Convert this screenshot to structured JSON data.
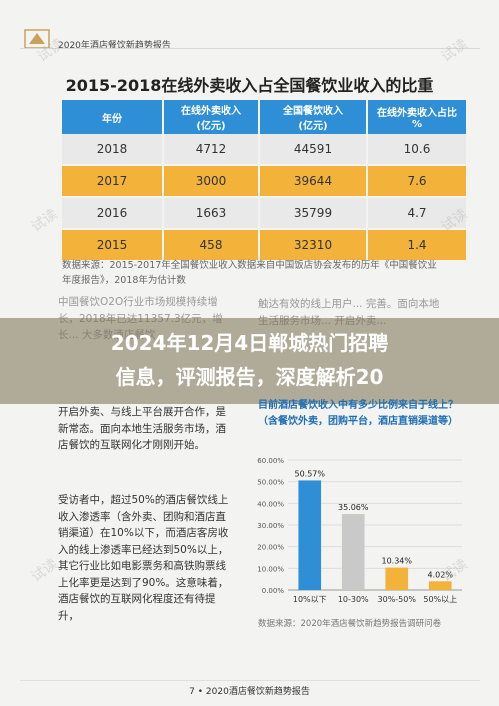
{
  "header": {
    "title": "2020年酒店餐饮新趋势报告"
  },
  "section": {
    "title": "2015-2018在线外卖收入占全国餐饮业收入的比重"
  },
  "table": {
    "headers": [
      "年份",
      "在线外卖收入\n(亿元)",
      "全国餐饮收入\n(亿元)",
      "在线外卖收入占比\n%"
    ],
    "rows": [
      [
        "2018",
        "4712",
        "44591",
        "10.6"
      ],
      [
        "2017",
        "3000",
        "39644",
        "7.6"
      ],
      [
        "2016",
        "1663",
        "35799",
        "4.7"
      ],
      [
        "2015",
        "458",
        "32310",
        "1.4"
      ]
    ]
  },
  "source1": "数据来源：2015-2017年全国餐饮业收入数据来自中国饭店协会发布的历年《中国餐饮业年度报告》，2018年为估计数",
  "left_col": {
    "p1_frag": "中国餐饮O2O行业市场规模持续增长，2018年已达11357.3亿元，增长... 大多数酒店餐饮",
    "p1": "开启外卖、与线上平台展开合作，是新常态。面向本地生活服务市场，酒店餐饮的互联网化才刚刚开始。",
    "p2": "受访者中，超过50%的酒店餐饮线上收入渗透率（含外卖、团购和酒店直销渠道）在10%以下，而酒店客房收入的线上渗透率已经达到50%以上，其它行业比如电影票务和高铁购票线上化率更是达到了90%。这意味着，酒店餐饮的互联网化程度还有待提升，"
  },
  "right_col": {
    "frag": "触达有效的线上用户... 完善。面向本地生活服务市场... 开启外卖..."
  },
  "banner": {
    "line1": "2024年12月4日郸城热门招聘",
    "line2": "信息，评测报告，深度解析20"
  },
  "chart_title": "目前酒店餐饮收入中有多少比例来自于线上？（含餐饮外卖，团购平台，酒店直销渠道等）",
  "chart_data": {
    "type": "bar",
    "categories": [
      "10%以下",
      "10-30%",
      "30%-50%",
      "50%以上"
    ],
    "values": [
      50.57,
      35.06,
      10.34,
      4.02
    ],
    "value_labels": [
      "50.57%",
      "35.06%",
      "10.34%",
      "4.02%"
    ],
    "ylim": [
      0,
      60
    ],
    "yticks": [
      "0.00%",
      "10.00%",
      "20.00%",
      "30.00%",
      "40.00%",
      "50.00%",
      "60.00%"
    ],
    "colors": [
      "#2e8fd6",
      "#c9c9c9",
      "#f3b23a",
      "#f3b23a"
    ]
  },
  "source2": "数据来源：2020年酒店餐饮新趋势报告调研问卷",
  "footer": "7 • 2020酒店餐饮新趋势报告",
  "watermark": "试读"
}
